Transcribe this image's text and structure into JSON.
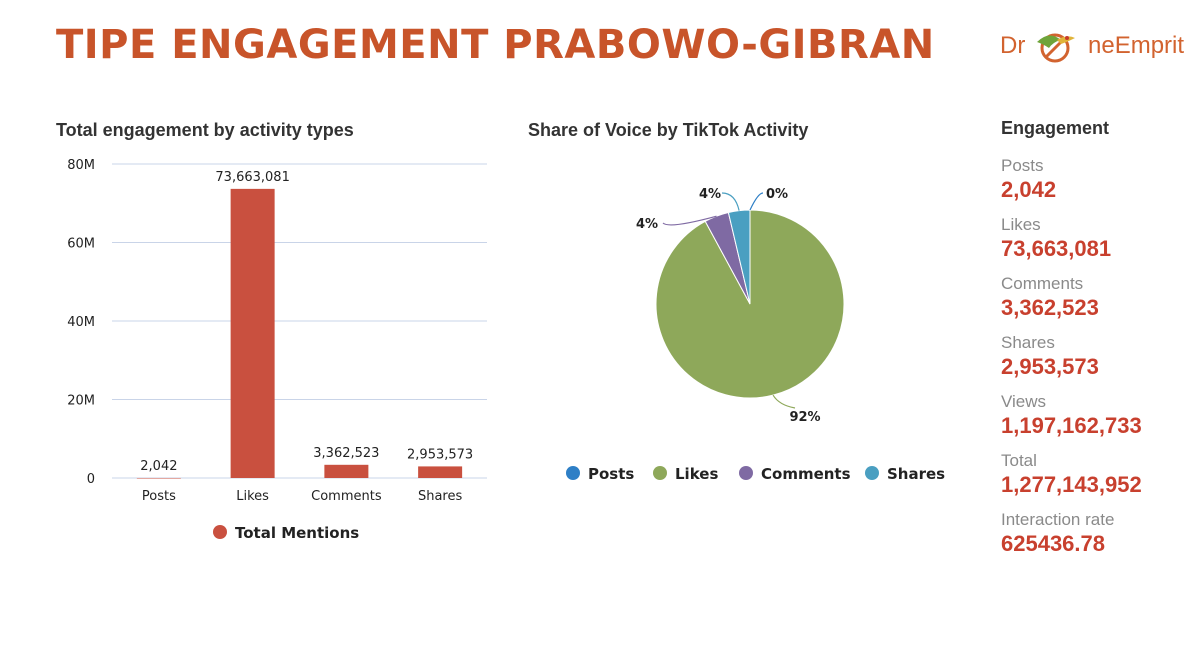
{
  "title": "TIPE ENGAGEMENT PRABOWO-GIBRAN",
  "logo": {
    "text_left": "Dr",
    "text_right": "neEmprit"
  },
  "chart_data": [
    {
      "type": "bar",
      "title": "Total engagement by activity types",
      "categories": [
        "Posts",
        "Likes",
        "Comments",
        "Shares"
      ],
      "series": [
        {
          "name": "Total Mentions",
          "values": [
            2042,
            73663081,
            3362523,
            2953573
          ]
        }
      ],
      "value_labels": [
        "2,042",
        "73,663,081",
        "3,362,523",
        "2,953,573"
      ],
      "yticks": [
        "0",
        "20M",
        "40M",
        "60M",
        "80M"
      ],
      "ylim": [
        0,
        80000000
      ],
      "grid": true,
      "legend": "bottom",
      "colors": {
        "bar": "#c9503f"
      }
    },
    {
      "type": "pie",
      "title": "Share of Voice by TikTok Activity",
      "categories": [
        "Posts",
        "Likes",
        "Comments",
        "Shares"
      ],
      "values": [
        2042,
        73663081,
        3362523,
        2953573
      ],
      "slice_labels": [
        "0%",
        "92%",
        "4%",
        "4%"
      ],
      "colors": [
        "#2e7fc6",
        "#8ea85a",
        "#7f6aa3",
        "#4a9fc1"
      ],
      "legend": "bottom"
    }
  ],
  "engagement": {
    "title": "Engagement",
    "items": [
      {
        "label": "Posts",
        "value": "2,042"
      },
      {
        "label": "Likes",
        "value": "73,663,081"
      },
      {
        "label": "Comments",
        "value": "3,362,523"
      },
      {
        "label": "Shares",
        "value": "2,953,573"
      },
      {
        "label": "Views",
        "value": "1,197,162,733"
      },
      {
        "label": "Total",
        "value": "1,277,143,952"
      },
      {
        "label": "Interaction rate",
        "value": "625436.78"
      }
    ]
  }
}
